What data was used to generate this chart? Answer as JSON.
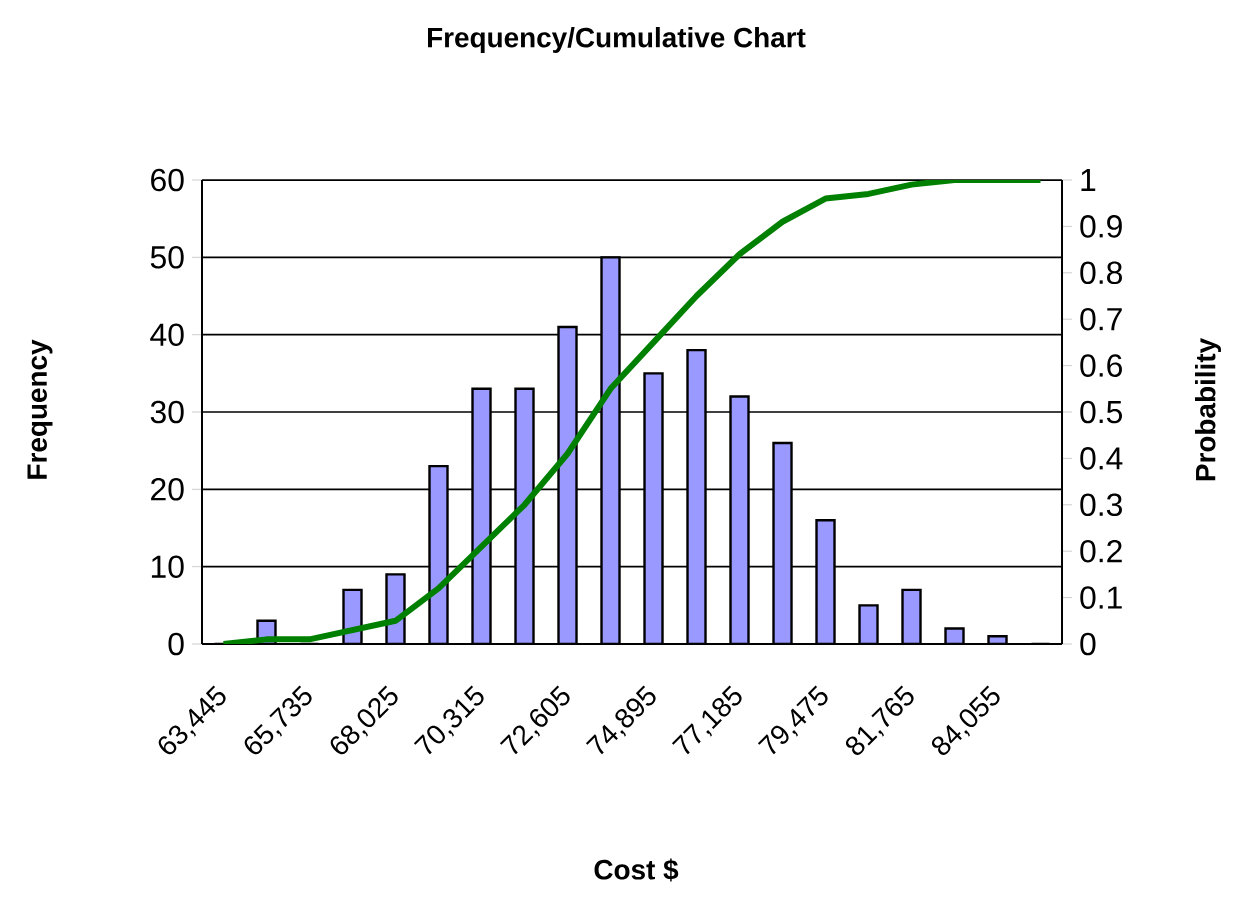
{
  "chart_data": {
    "type": "bar",
    "title": "Frequency/Cumulative Chart",
    "xlabel": "Cost $",
    "ylabel": "Frequency",
    "y2label": "Probability",
    "categories": [
      "63,445",
      null,
      "65,735",
      null,
      "68,025",
      null,
      "70,315",
      null,
      "72,605",
      null,
      "74,895",
      null,
      "77,185",
      null,
      "79,475",
      null,
      "81,765",
      null,
      "84,055",
      null
    ],
    "series": [
      {
        "color": "#9999ff",
        "values": [
          0,
          3,
          0,
          7,
          9,
          23,
          33,
          33,
          41,
          50,
          35,
          38,
          32,
          26,
          16,
          5,
          7,
          2,
          1,
          0
        ]
      },
      {
        "type": "line",
        "axis": "y2",
        "color": "#008000",
        "values": [
          0,
          0.01,
          0.01,
          0.03,
          0.05,
          0.12,
          0.21,
          0.3,
          0.41,
          0.55,
          0.65,
          0.75,
          0.84,
          0.91,
          0.96,
          0.97,
          0.99,
          1,
          1,
          1
        ]
      }
    ],
    "ylim": [
      0,
      60
    ],
    "yticks": [
      0,
      10,
      20,
      30,
      40,
      50,
      60
    ],
    "y2lim": [
      0,
      1
    ],
    "y2ticks": [
      0,
      0.1,
      0.2,
      0.3,
      0.4,
      0.5,
      0.6,
      0.7,
      0.8,
      0.9,
      1
    ],
    "grid": "y",
    "marker": "none",
    "line_style": "solid"
  }
}
